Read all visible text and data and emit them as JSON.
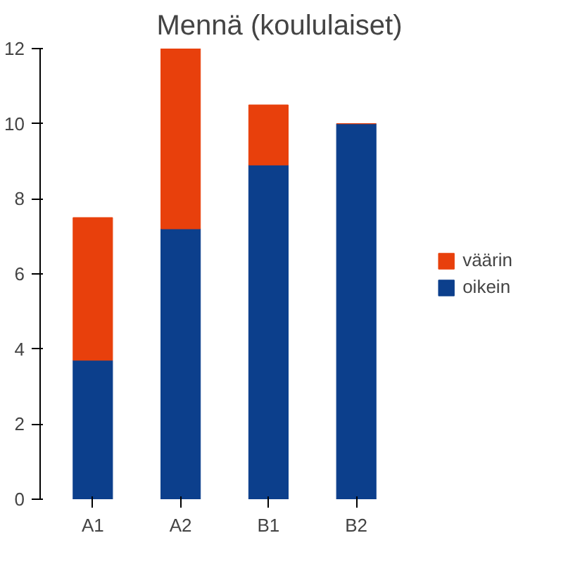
{
  "chart_data": {
    "type": "bar",
    "title": "Mennä (koululaiset)",
    "categories": [
      "A1",
      "A2",
      "B1",
      "B2"
    ],
    "stacked": true,
    "series": [
      {
        "name": "oikein",
        "color": "#0c3f8c",
        "values": [
          3.7,
          7.2,
          8.9,
          10.0
        ]
      },
      {
        "name": "väärin",
        "color": "#e8400c",
        "values": [
          3.8,
          4.8,
          1.6,
          0
        ]
      }
    ],
    "ylim": [
      0,
      12
    ],
    "yticks": [
      0,
      2,
      4,
      6,
      8,
      10,
      12
    ],
    "grid": false,
    "legend": "right"
  }
}
